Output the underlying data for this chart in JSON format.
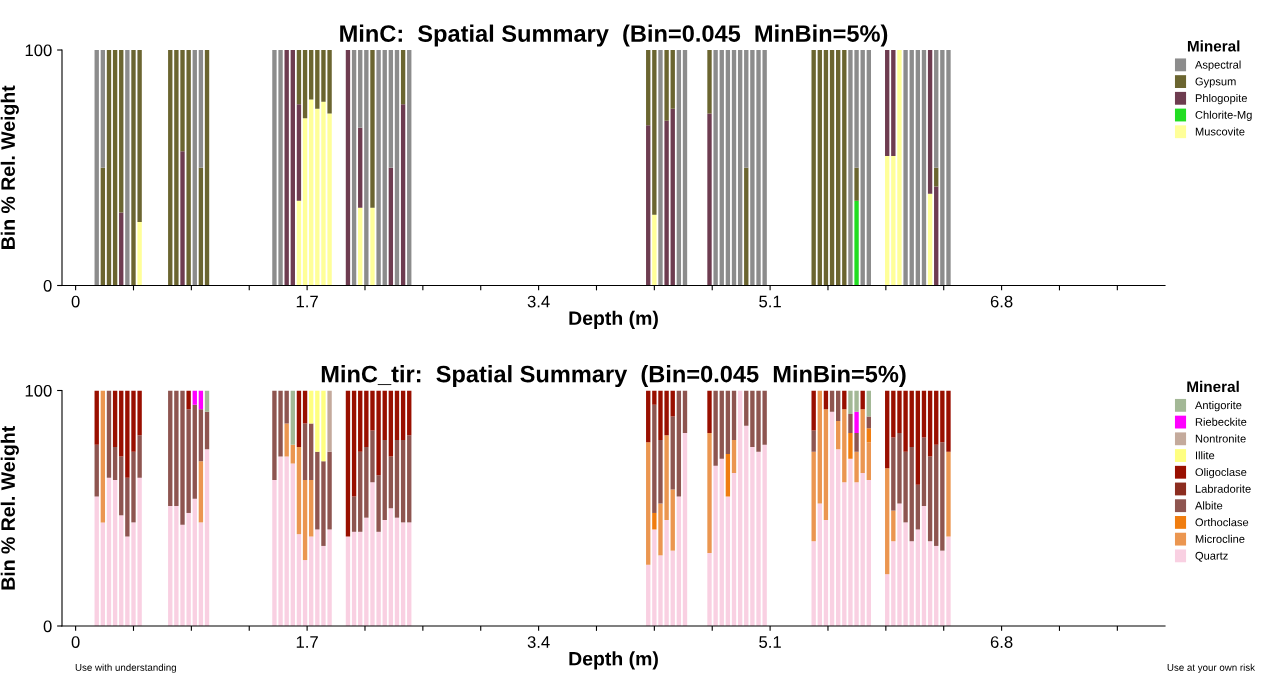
{
  "chart_data": [
    {
      "type": "bar",
      "stacked": true,
      "title": "MinC:  Spatial Summary  (Bin=0.045  MinBin=5%)",
      "xlabel": "Depth (m)",
      "ylabel": "Bin % Rel. Weight",
      "legend_title": "Mineral",
      "legend": "right",
      "grid": false,
      "xlim": [
        -0.1,
        8.0
      ],
      "ylim": [
        0,
        100
      ],
      "yticks": [
        0,
        100
      ],
      "xticks": [
        0,
        {
          "value": 0.425,
          "label": null
        },
        {
          "value": 0.85,
          "label": null
        },
        {
          "value": 1.275,
          "label": null
        },
        1.7,
        {
          "value": 2.125,
          "label": null
        },
        {
          "value": 2.55,
          "label": null
        },
        {
          "value": 2.975,
          "label": null
        },
        3.4,
        {
          "value": 3.825,
          "label": null
        },
        {
          "value": 4.25,
          "label": null
        },
        {
          "value": 4.675,
          "label": null
        },
        5.1,
        {
          "value": 5.525,
          "label": null
        },
        {
          "value": 5.95,
          "label": null
        },
        {
          "value": 6.375,
          "label": null
        },
        6.8,
        {
          "value": 7.225,
          "label": null
        },
        {
          "value": 7.65,
          "label": null
        }
      ],
      "x": [
        0.155,
        0.2,
        0.245,
        0.29,
        0.335,
        0.38,
        0.425,
        0.47,
        0.695,
        0.74,
        0.785,
        0.83,
        0.875,
        0.92,
        0.965,
        1.46,
        1.505,
        1.55,
        1.595,
        1.64,
        1.685,
        1.73,
        1.775,
        1.82,
        1.865,
        2.0,
        2.045,
        2.09,
        2.135,
        2.18,
        2.225,
        2.27,
        2.315,
        2.36,
        2.405,
        2.45,
        4.205,
        4.25,
        4.295,
        4.34,
        4.385,
        4.43,
        4.475,
        4.655,
        4.7,
        4.745,
        4.79,
        4.835,
        4.88,
        4.925,
        4.97,
        5.015,
        5.06,
        5.42,
        5.465,
        5.51,
        5.555,
        5.6,
        5.645,
        5.69,
        5.735,
        5.78,
        5.825,
        5.96,
        6.005,
        6.05,
        6.095,
        6.14,
        6.185,
        6.23,
        6.275,
        6.32,
        6.365,
        6.41
      ],
      "series": [
        {
          "name": "Muscovite",
          "color": "#ffff99",
          "values": [
            0,
            0,
            0,
            0,
            0,
            0,
            0,
            27,
            0,
            0,
            0,
            0,
            0,
            0,
            0,
            0,
            0,
            0,
            0,
            36,
            71,
            79,
            75,
            78,
            73,
            0,
            0,
            33,
            0,
            33,
            0,
            0,
            0,
            0,
            0,
            0,
            0,
            30,
            0,
            0,
            0,
            0,
            0,
            0,
            0,
            0,
            0,
            0,
            0,
            0,
            0,
            0,
            0,
            0,
            0,
            0,
            0,
            0,
            0,
            0,
            0,
            0,
            0,
            55,
            55,
            100,
            0,
            0,
            0,
            0,
            39,
            0,
            0,
            0
          ]
        },
        {
          "name": "Chlorite-Mg",
          "color": "#22dd22",
          "values": [
            0,
            0,
            0,
            0,
            0,
            0,
            0,
            0,
            0,
            0,
            0,
            0,
            0,
            0,
            0,
            0,
            0,
            0,
            0,
            0,
            0,
            0,
            0,
            0,
            0,
            0,
            0,
            0,
            0,
            0,
            0,
            0,
            0,
            0,
            0,
            0,
            0,
            0,
            0,
            0,
            0,
            0,
            0,
            0,
            0,
            0,
            0,
            0,
            0,
            0,
            0,
            0,
            0,
            0,
            0,
            0,
            0,
            0,
            0,
            0,
            36,
            0,
            0,
            0,
            0,
            0,
            0,
            0,
            0,
            0,
            0,
            0,
            0,
            0
          ]
        },
        {
          "name": "Phlogopite",
          "color": "#6e3c50",
          "values": [
            0,
            0,
            0,
            0,
            31,
            0,
            0,
            0,
            0,
            0,
            57,
            0,
            0,
            0,
            0,
            0,
            0,
            100,
            100,
            41,
            0,
            0,
            0,
            0,
            0,
            100,
            0,
            34,
            0,
            0,
            0,
            0,
            50,
            0,
            77,
            0,
            68,
            0,
            0,
            70,
            75,
            0,
            0,
            73,
            0,
            0,
            0,
            0,
            0,
            0,
            0,
            0,
            0,
            0,
            0,
            0,
            0,
            0,
            0,
            0,
            0,
            0,
            0,
            45,
            45,
            0,
            0,
            0,
            0,
            0,
            61,
            42,
            0,
            0
          ]
        },
        {
          "name": "Gypsum",
          "color": "#6b6530",
          "values": [
            0,
            50,
            100,
            100,
            69,
            0,
            100,
            73,
            100,
            100,
            43,
            100,
            0,
            50,
            100,
            0,
            0,
            0,
            0,
            23,
            29,
            21,
            25,
            22,
            27,
            0,
            0,
            0,
            0,
            67,
            0,
            0,
            0,
            0,
            23,
            0,
            32,
            70,
            0,
            30,
            25,
            0,
            0,
            27,
            0,
            0,
            0,
            0,
            0,
            50,
            0,
            0,
            0,
            100,
            100,
            100,
            100,
            100,
            100,
            0,
            14,
            0,
            0,
            0,
            0,
            0,
            0,
            0,
            0,
            0,
            0,
            8,
            0,
            0
          ]
        },
        {
          "name": "Aspectral",
          "color": "#8c8c8c",
          "values": [
            100,
            50,
            0,
            0,
            0,
            100,
            0,
            0,
            0,
            0,
            0,
            0,
            100,
            50,
            0,
            100,
            100,
            0,
            0,
            0,
            0,
            0,
            0,
            0,
            0,
            0,
            100,
            33,
            100,
            0,
            100,
            100,
            50,
            100,
            0,
            100,
            0,
            0,
            100,
            0,
            0,
            100,
            100,
            0,
            100,
            100,
            100,
            100,
            100,
            50,
            100,
            100,
            100,
            0,
            0,
            0,
            0,
            0,
            0,
            100,
            50,
            100,
            100,
            0,
            0,
            0,
            100,
            100,
            100,
            100,
            0,
            50,
            100,
            100
          ]
        }
      ]
    },
    {
      "type": "bar",
      "stacked": true,
      "title": "MinC_tir:  Spatial Summary  (Bin=0.045  MinBin=5%)",
      "xlabel": "Depth (m)",
      "ylabel": "Bin % Rel. Weight",
      "legend_title": "Mineral",
      "legend": "right",
      "grid": false,
      "annotations": [
        "Use with understanding",
        "Use at your own risk"
      ],
      "xlim": [
        -0.1,
        8.0
      ],
      "ylim": [
        0,
        100
      ],
      "yticks": [
        0,
        100
      ],
      "xticks": [
        0,
        {
          "value": 0.425,
          "label": null
        },
        {
          "value": 0.85,
          "label": null
        },
        {
          "value": 1.275,
          "label": null
        },
        1.7,
        {
          "value": 2.125,
          "label": null
        },
        {
          "value": 2.55,
          "label": null
        },
        {
          "value": 2.975,
          "label": null
        },
        3.4,
        {
          "value": 3.825,
          "label": null
        },
        {
          "value": 4.25,
          "label": null
        },
        {
          "value": 4.675,
          "label": null
        },
        5.1,
        {
          "value": 5.525,
          "label": null
        },
        {
          "value": 5.95,
          "label": null
        },
        {
          "value": 6.375,
          "label": null
        },
        6.8,
        {
          "value": 7.225,
          "label": null
        },
        {
          "value": 7.65,
          "label": null
        }
      ],
      "x": [
        0.155,
        0.2,
        0.245,
        0.29,
        0.335,
        0.38,
        0.425,
        0.47,
        0.695,
        0.74,
        0.785,
        0.83,
        0.875,
        0.92,
        0.965,
        1.46,
        1.505,
        1.55,
        1.595,
        1.64,
        1.685,
        1.73,
        1.775,
        1.82,
        1.865,
        2.0,
        2.045,
        2.09,
        2.135,
        2.18,
        2.225,
        2.27,
        2.315,
        2.36,
        2.405,
        2.45,
        4.205,
        4.25,
        4.295,
        4.34,
        4.385,
        4.43,
        4.475,
        4.655,
        4.7,
        4.745,
        4.79,
        4.835,
        4.88,
        4.925,
        4.97,
        5.015,
        5.06,
        5.42,
        5.465,
        5.51,
        5.555,
        5.6,
        5.645,
        5.69,
        5.735,
        5.78,
        5.825,
        5.96,
        6.005,
        6.05,
        6.095,
        6.14,
        6.185,
        6.23,
        6.275,
        6.32,
        6.365,
        6.41
      ],
      "series": [
        {
          "name": "Quartz",
          "color": "#f9d0e2",
          "values": [
            55,
            44,
            63,
            62,
            47,
            38,
            44,
            63,
            51,
            51,
            43,
            48,
            54,
            44,
            75,
            62,
            72,
            72,
            69,
            39,
            28,
            38,
            41,
            34,
            41,
            38,
            40,
            40,
            46,
            61,
            40,
            45,
            50,
            46,
            44,
            44,
            26,
            41,
            30,
            45,
            32,
            55,
            82,
            31,
            68,
            71,
            55,
            65,
            100,
            85,
            76,
            74,
            77,
            36,
            52,
            45,
            91,
            75,
            61,
            71,
            61,
            65,
            62,
            22,
            36,
            52,
            44,
            36,
            41,
            51,
            36,
            34,
            32,
            38
          ]
        },
        {
          "name": "Microcline",
          "color": "#eb9650",
          "values": [
            0,
            56,
            0,
            0,
            0,
            0,
            0,
            0,
            0,
            0,
            0,
            0,
            0,
            26,
            0,
            0,
            0,
            14,
            8,
            37,
            34,
            24,
            0,
            0,
            0,
            0,
            0,
            0,
            0,
            0,
            0,
            0,
            0,
            0,
            0,
            0,
            52,
            0,
            22,
            36,
            26,
            0,
            0,
            51,
            0,
            0,
            0,
            14,
            0,
            0,
            0,
            0,
            0,
            38,
            48,
            47,
            0,
            12,
            31,
            0,
            13,
            27,
            16,
            45,
            13,
            0,
            0,
            0,
            0,
            0,
            0,
            0,
            0,
            36
          ]
        },
        {
          "name": "Orthoclase",
          "color": "#f07d10",
          "values": [
            0,
            0,
            0,
            0,
            0,
            0,
            0,
            0,
            0,
            0,
            0,
            0,
            0,
            0,
            0,
            0,
            0,
            0,
            0,
            0,
            0,
            0,
            0,
            0,
            0,
            0,
            0,
            0,
            0,
            0,
            0,
            0,
            0,
            0,
            0,
            0,
            0,
            7,
            0,
            0,
            0,
            0,
            0,
            0,
            0,
            0,
            18,
            0,
            0,
            0,
            0,
            0,
            0,
            0,
            0,
            0,
            0,
            0,
            0,
            11,
            0,
            0,
            6,
            0,
            0,
            0,
            0,
            0,
            0,
            0,
            0,
            0,
            0,
            0
          ]
        },
        {
          "name": "Albite",
          "color": "#8e5550",
          "values": [
            22,
            0,
            37,
            14,
            25,
            25,
            30,
            18,
            49,
            49,
            57,
            44,
            40,
            22,
            16,
            38,
            28,
            14,
            0,
            0,
            24,
            24,
            33,
            36,
            33,
            0,
            15,
            34,
            30,
            22,
            24,
            34,
            22,
            33,
            35,
            37,
            0,
            46,
            27,
            0,
            31,
            45,
            18,
            0,
            32,
            29,
            27,
            21,
            0,
            15,
            24,
            26,
            23,
            9,
            0,
            0,
            9,
            13,
            0,
            8,
            8,
            0,
            5,
            0,
            31,
            30,
            30,
            40,
            19,
            29,
            36,
            43,
            46,
            0
          ]
        },
        {
          "name": "Labradorite",
          "color": "#8c2d20",
          "values": [
            0,
            0,
            0,
            0,
            0,
            0,
            0,
            0,
            0,
            0,
            0,
            0,
            0,
            0,
            0,
            0,
            0,
            0,
            0,
            0,
            0,
            0,
            0,
            0,
            0,
            0,
            0,
            0,
            0,
            0,
            0,
            0,
            0,
            0,
            0,
            0,
            0,
            0,
            0,
            0,
            0,
            0,
            0,
            0,
            0,
            0,
            0,
            0,
            0,
            0,
            0,
            0,
            0,
            0,
            0,
            0,
            0,
            0,
            0,
            0,
            0,
            0,
            0,
            0,
            0,
            0,
            0,
            0,
            0,
            0,
            0,
            0,
            0,
            0
          ]
        },
        {
          "name": "Oligoclase",
          "color": "#990f00",
          "values": [
            23,
            0,
            0,
            24,
            28,
            37,
            26,
            19,
            0,
            0,
            0,
            8,
            0,
            0,
            0,
            0,
            0,
            0,
            0,
            24,
            14,
            0,
            0,
            0,
            0,
            62,
            45,
            26,
            24,
            17,
            36,
            21,
            28,
            21,
            21,
            19,
            22,
            6,
            21,
            19,
            11,
            0,
            0,
            18,
            0,
            0,
            0,
            0,
            0,
            0,
            0,
            0,
            0,
            17,
            0,
            8,
            0,
            0,
            8,
            0,
            0,
            8,
            0,
            33,
            20,
            18,
            26,
            24,
            40,
            20,
            28,
            23,
            22,
            26
          ]
        },
        {
          "name": "Illite",
          "color": "#ffff80",
          "values": [
            0,
            0,
            0,
            0,
            0,
            0,
            0,
            0,
            0,
            0,
            0,
            0,
            0,
            0,
            0,
            0,
            0,
            0,
            0,
            0,
            0,
            14,
            26,
            30,
            0,
            0,
            0,
            0,
            0,
            0,
            0,
            0,
            0,
            0,
            0,
            0,
            0,
            0,
            0,
            0,
            0,
            0,
            0,
            0,
            0,
            0,
            0,
            0,
            0,
            0,
            0,
            0,
            0,
            0,
            0,
            0,
            0,
            0,
            0,
            0,
            0,
            0,
            0,
            0,
            0,
            0,
            0,
            0,
            0,
            0,
            0,
            0,
            0,
            0
          ]
        },
        {
          "name": "Nontronite",
          "color": "#c4aa9c",
          "values": [
            0,
            0,
            0,
            0,
            0,
            0,
            0,
            0,
            0,
            0,
            0,
            0,
            0,
            0,
            0,
            0,
            0,
            0,
            0,
            0,
            0,
            0,
            0,
            0,
            26,
            0,
            0,
            0,
            0,
            0,
            0,
            0,
            0,
            0,
            0,
            0,
            0,
            0,
            0,
            0,
            0,
            0,
            0,
            0,
            0,
            0,
            0,
            0,
            0,
            0,
            0,
            0,
            0,
            0,
            0,
            0,
            0,
            0,
            0,
            0,
            0,
            0,
            0,
            0,
            0,
            0,
            0,
            0,
            0,
            0,
            0,
            0,
            0,
            0
          ]
        },
        {
          "name": "Riebeckite",
          "color": "#ff00ff",
          "values": [
            0,
            0,
            0,
            0,
            0,
            0,
            0,
            0,
            0,
            0,
            0,
            0,
            6,
            8,
            0,
            0,
            0,
            0,
            0,
            0,
            0,
            0,
            0,
            0,
            0,
            0,
            0,
            0,
            0,
            0,
            0,
            0,
            0,
            0,
            0,
            0,
            0,
            0,
            0,
            0,
            0,
            0,
            0,
            0,
            0,
            0,
            0,
            0,
            0,
            0,
            0,
            0,
            0,
            0,
            0,
            0,
            0,
            0,
            0,
            0,
            9,
            0,
            0,
            0,
            0,
            0,
            0,
            0,
            0,
            0,
            0,
            0,
            0,
            0
          ]
        },
        {
          "name": "Antigorite",
          "color": "#a3b896",
          "values": [
            0,
            0,
            0,
            0,
            0,
            0,
            0,
            0,
            0,
            0,
            0,
            0,
            0,
            0,
            9,
            0,
            0,
            0,
            23,
            0,
            0,
            0,
            0,
            0,
            0,
            0,
            0,
            0,
            0,
            0,
            0,
            0,
            0,
            0,
            0,
            0,
            0,
            0,
            0,
            0,
            0,
            0,
            0,
            0,
            0,
            0,
            0,
            0,
            0,
            0,
            0,
            0,
            0,
            0,
            0,
            0,
            0,
            0,
            0,
            10,
            9,
            0,
            11,
            0,
            0,
            0,
            0,
            0,
            0,
            0,
            0,
            0,
            0,
            0
          ]
        }
      ]
    }
  ]
}
